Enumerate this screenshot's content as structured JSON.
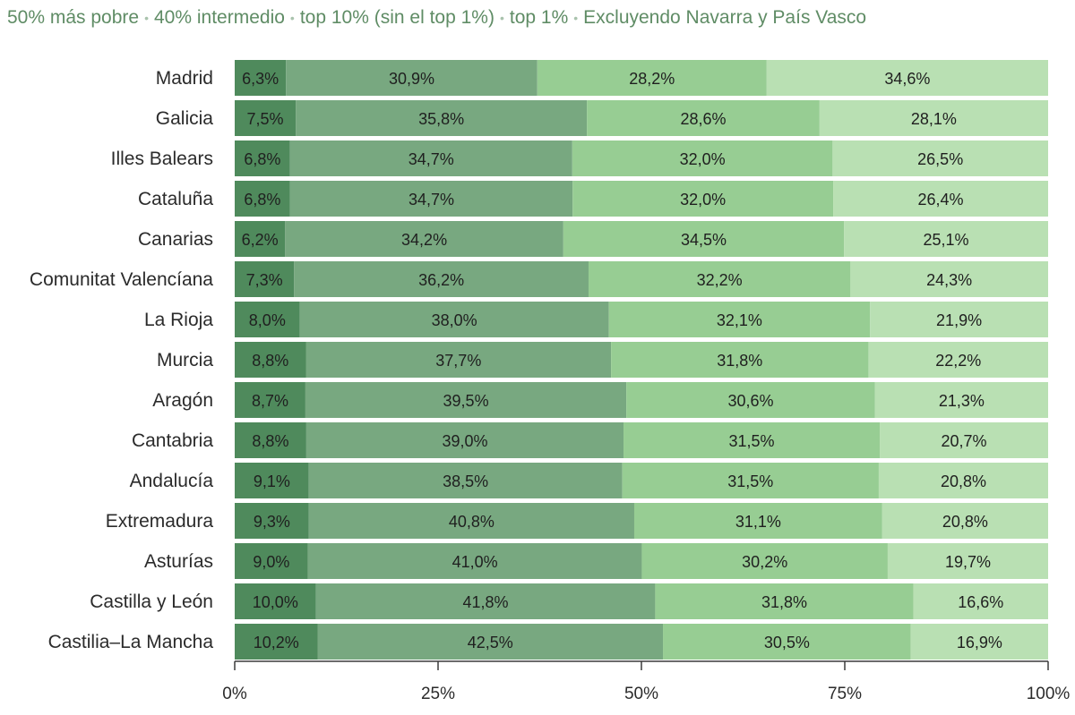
{
  "legend": {
    "items": [
      "50% más pobre",
      "40% intermedio",
      "top 10% (sin el top 1%)",
      "top 1%"
    ],
    "note": "Excluyendo Navarra y País Vasco"
  },
  "chart_data": {
    "type": "bar",
    "orientation": "horizontal",
    "stacked": true,
    "title": "",
    "xlabel": "",
    "ylabel": "",
    "xlim": [
      0,
      100
    ],
    "x_ticks": [
      0,
      25,
      50,
      75,
      100
    ],
    "x_tick_labels": [
      "0%",
      "25%",
      "50%",
      "75%",
      "100%"
    ],
    "categories": [
      "Madrid",
      "Galicia",
      "Illes Balears",
      "Cataluña",
      "Canarias",
      "Comunitat Valencíana",
      "La Rioja",
      "Murcia",
      "Aragón",
      "Cantabria",
      "Andalucía",
      "Extremadura",
      "Asturías",
      "Castilla y León",
      "Castilia–La Mancha"
    ],
    "series": [
      {
        "name": "50% más pobre",
        "color": "#4f8a5c",
        "values": [
          6.3,
          7.5,
          6.8,
          6.8,
          6.2,
          7.3,
          8.0,
          8.8,
          8.7,
          8.8,
          9.1,
          9.3,
          9.0,
          10.0,
          10.2
        ],
        "labels": [
          "6,3%",
          "7,5%",
          "6,8%",
          "6,8%",
          "6,2%",
          "7,3%",
          "8,0%",
          "8,8%",
          "8,7%",
          "8,8%",
          "9,1%",
          "9,3%",
          "9,0%",
          "10,0%",
          "10,2%"
        ]
      },
      {
        "name": "40% intermedio",
        "color": "#78a880",
        "values": [
          30.9,
          35.8,
          34.7,
          34.7,
          34.2,
          36.2,
          38.0,
          37.7,
          39.5,
          39.0,
          38.5,
          40.8,
          41.0,
          41.8,
          42.5
        ],
        "labels": [
          "30,9%",
          "35,8%",
          "34,7%",
          "34,7%",
          "34,2%",
          "36,2%",
          "38,0%",
          "37,7%",
          "39,5%",
          "39,0%",
          "38,5%",
          "40,8%",
          "41,0%",
          "41,8%",
          "42,5%"
        ]
      },
      {
        "name": "top 10% (sin el top 1%)",
        "color": "#97cd93",
        "values": [
          28.2,
          28.6,
          32.0,
          32.0,
          34.5,
          32.2,
          32.1,
          31.8,
          30.6,
          31.5,
          31.5,
          31.1,
          30.2,
          31.8,
          30.5
        ],
        "labels": [
          "28,2%",
          "28,6%",
          "32,0%",
          "32,0%",
          "34,5%",
          "32,2%",
          "32,1%",
          "31,8%",
          "30,6%",
          "31,5%",
          "31,5%",
          "31,1%",
          "30,2%",
          "31,8%",
          "30,5%"
        ]
      },
      {
        "name": "top 1%",
        "color": "#b9e0b3",
        "values": [
          34.6,
          28.1,
          26.5,
          26.4,
          25.1,
          24.3,
          21.9,
          22.2,
          21.3,
          20.7,
          20.8,
          20.8,
          19.7,
          16.6,
          16.9
        ],
        "labels": [
          "34,6%",
          "28,1%",
          "26,5%",
          "26,4%",
          "25,1%",
          "24,3%",
          "21,9%",
          "22,2%",
          "21,3%",
          "20,7%",
          "20,8%",
          "20,8%",
          "19,7%",
          "16,6%",
          "16,9%"
        ]
      }
    ]
  }
}
